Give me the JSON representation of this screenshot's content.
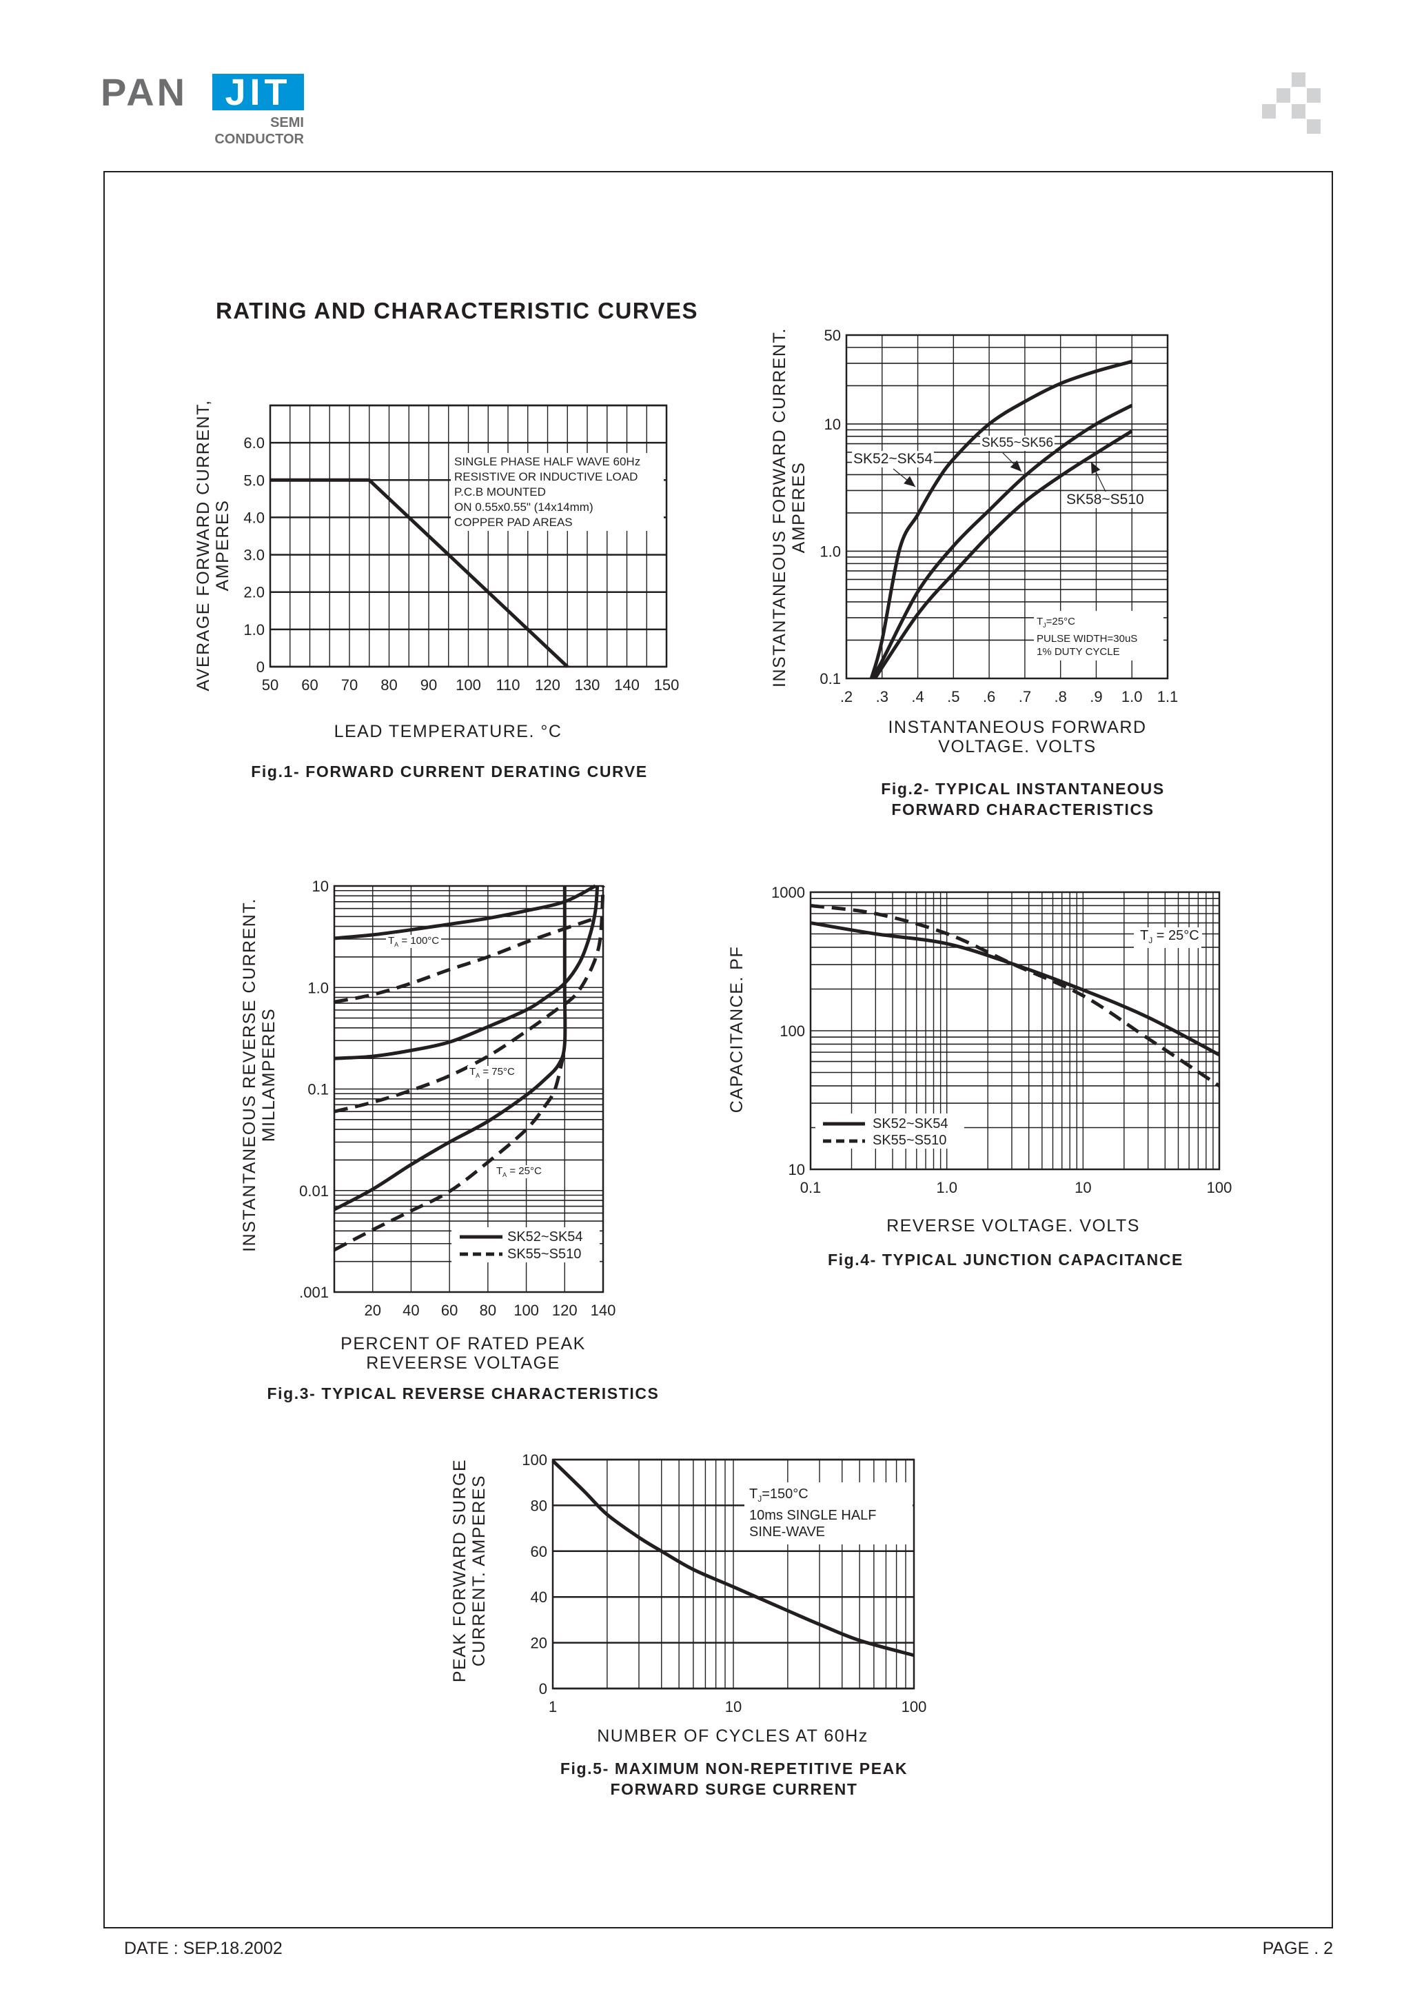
{
  "header": {
    "logo_left": "PAN",
    "logo_right": "JIT",
    "logo_sub1": "SEMI",
    "logo_sub2": "CONDUCTOR"
  },
  "section_title": "RATING AND CHARACTERISTIC CURVES",
  "footer": {
    "date": "DATE : SEP.18.2002",
    "page": "PAGE . 2"
  },
  "colors": {
    "ink": "#231f20",
    "logo_gray": "#6d6e70",
    "logo_blue": "#0095d9",
    "corner_squares": "#d1d2d4"
  },
  "chart_data": [
    {
      "type": "line",
      "caption": [
        "Fig.1- FORWARD CURRENT DERATING CURVE"
      ],
      "xlabel": [
        "LEAD TEMPERATURE. °C"
      ],
      "ylabel": [
        "AVERAGE FORWARD CURRENT,",
        "AMPERES"
      ],
      "xscale": "linear",
      "yscale": "linear",
      "xlim": [
        50,
        150
      ],
      "ylim": [
        0,
        7
      ],
      "grid": true,
      "xticks": [
        {
          "v": 50,
          "label": "50"
        },
        {
          "v": 60,
          "label": "60"
        },
        {
          "v": 70,
          "label": "70"
        },
        {
          "v": 80,
          "label": "80"
        },
        {
          "v": 90,
          "label": "90"
        },
        {
          "v": 100,
          "label": "100"
        },
        {
          "v": 110,
          "label": "110"
        },
        {
          "v": 120,
          "label": "120"
        },
        {
          "v": 130,
          "label": "130"
        },
        {
          "v": 140,
          "label": "140"
        },
        {
          "v": 150,
          "label": "150"
        }
      ],
      "yticks": [
        {
          "v": 0,
          "label": "0"
        },
        {
          "v": 1,
          "label": "1.0"
        },
        {
          "v": 2,
          "label": "2.0"
        },
        {
          "v": 3,
          "label": "3.0"
        },
        {
          "v": 4,
          "label": "4.0"
        },
        {
          "v": 5,
          "label": "5.0"
        },
        {
          "v": 6,
          "label": "6.0"
        }
      ],
      "annotation": [
        "SINGLE PHASE HALF WAVE 60Hz",
        "RESISTIVE OR INDUCTIVE LOAD",
        "P.C.B MOUNTED",
        "ON 0.55x0.55\" (14x14mm)",
        "COPPER PAD AREAS"
      ],
      "series": [
        {
          "style": "solid",
          "points": [
            [
              50,
              5
            ],
            [
              75,
              5
            ],
            [
              125,
              0
            ]
          ]
        }
      ]
    },
    {
      "type": "line",
      "caption": [
        "Fig.2- TYPICAL INSTANTANEOUS",
        "FORWARD CHARACTERISTICS"
      ],
      "xlabel": [
        "INSTANTANEOUS FORWARD",
        "VOLTAGE. VOLTS"
      ],
      "ylabel": [
        "INSTANTANEOUS FORWARD CURRENT.",
        "AMPERES"
      ],
      "xscale": "linear",
      "yscale": "log",
      "xlim": [
        0.2,
        1.1
      ],
      "ylim": [
        0.1,
        50
      ],
      "grid": true,
      "xticks": [
        {
          "v": 0.2,
          "label": ".2"
        },
        {
          "v": 0.3,
          "label": ".3"
        },
        {
          "v": 0.4,
          "label": ".4"
        },
        {
          "v": 0.5,
          "label": ".5"
        },
        {
          "v": 0.6,
          "label": ".6"
        },
        {
          "v": 0.7,
          "label": ".7"
        },
        {
          "v": 0.8,
          "label": ".8"
        },
        {
          "v": 0.9,
          "label": ".9"
        },
        {
          "v": 1.0,
          "label": "1.0"
        },
        {
          "v": 1.1,
          "label": "1.1"
        }
      ],
      "yticks": [
        {
          "v": 0.1,
          "label": "0.1"
        },
        {
          "v": 1,
          "label": "1.0"
        },
        {
          "v": 10,
          "label": "10"
        },
        {
          "v": 50,
          "label": "50"
        }
      ],
      "annotation": {
        "t": "T",
        "sub": "J",
        "rest": "=25°C",
        "lines": [
          "PULSE WIDTH=30uS",
          "1% DUTY CYCLE"
        ]
      },
      "series": [
        {
          "name": "SK52~SK54",
          "style": "solid",
          "points": [
            [
              0.27,
              0.1
            ],
            [
              0.3,
              0.2
            ],
            [
              0.35,
              1.06
            ],
            [
              0.4,
              1.94
            ],
            [
              0.45,
              3.4
            ],
            [
              0.5,
              5.3
            ],
            [
              0.6,
              10
            ],
            [
              0.7,
              15
            ],
            [
              0.8,
              20.8
            ],
            [
              0.9,
              26
            ],
            [
              1.0,
              31
            ]
          ]
        },
        {
          "name": "SK55~SK56",
          "style": "solid",
          "points": [
            [
              0.27,
              0.1
            ],
            [
              0.3,
              0.137
            ],
            [
              0.4,
              0.48
            ],
            [
              0.5,
              1.1
            ],
            [
              0.6,
              2.1
            ],
            [
              0.7,
              3.9
            ],
            [
              0.8,
              6.5
            ],
            [
              0.9,
              10
            ],
            [
              1.0,
              14
            ]
          ]
        },
        {
          "name": "SK58~S510",
          "style": "solid",
          "points": [
            [
              0.28,
              0.1
            ],
            [
              0.4,
              0.32
            ],
            [
              0.5,
              0.67
            ],
            [
              0.6,
              1.34
            ],
            [
              0.7,
              2.45
            ],
            [
              0.8,
              3.9
            ],
            [
              0.9,
              5.9
            ],
            [
              1.0,
              8.8
            ]
          ]
        }
      ]
    },
    {
      "type": "line",
      "caption": [
        "Fig.3- TYPICAL REVERSE CHARACTERISTICS"
      ],
      "xlabel": [
        "PERCENT OF RATED PEAK",
        "REVEERSE VOLTAGE"
      ],
      "ylabel": [
        "INSTANTANEOUS REVERSE CURRENT.",
        "MILLAMPERES"
      ],
      "xscale": "linear",
      "yscale": "log",
      "xlim": [
        0,
        140
      ],
      "ylim": [
        0.001,
        10
      ],
      "grid": true,
      "xticks": [
        {
          "v": 20,
          "label": "20"
        },
        {
          "v": 40,
          "label": "40"
        },
        {
          "v": 60,
          "label": "60"
        },
        {
          "v": 80,
          "label": "80"
        },
        {
          "v": 100,
          "label": "100"
        },
        {
          "v": 120,
          "label": "120"
        },
        {
          "v": 140,
          "label": "140"
        }
      ],
      "yticks": [
        {
          "v": 0.001,
          "label": ".001"
        },
        {
          "v": 0.01,
          "label": "0.01"
        },
        {
          "v": 0.1,
          "label": "0.1"
        },
        {
          "v": 1,
          "label": "1.0"
        },
        {
          "v": 10,
          "label": "10"
        }
      ],
      "temperature_labels": [
        {
          "t": "T",
          "sub": "A",
          "rest": " =  100°C"
        },
        {
          "t": "T",
          "sub": "A",
          "rest": " =  75°C"
        },
        {
          "t": "T",
          "sub": "A",
          "rest": " =  25°C"
        }
      ],
      "legend": [
        {
          "name": "SK52~SK54",
          "style": "solid"
        },
        {
          "name": "SK55~S510",
          "style": "dashed"
        }
      ],
      "legend_position": "bottom-right",
      "series": [
        {
          "name": "SK52~SK54",
          "temperature": "100°C",
          "style": "solid",
          "points": [
            [
              0,
              3.05
            ],
            [
              20,
              3.3
            ],
            [
              40,
              3.7
            ],
            [
              60,
              4.2
            ],
            [
              80,
              4.8
            ],
            [
              100,
              5.7
            ],
            [
              120,
              7.0
            ],
            [
              136,
              10
            ]
          ]
        },
        {
          "name": "SK55~S510",
          "temperature": "100°C",
          "style": "dashed",
          "points": [
            [
              0,
              0.72
            ],
            [
              20,
              0.85
            ],
            [
              40,
              1.1
            ],
            [
              60,
              1.5
            ],
            [
              80,
              2.0
            ],
            [
              100,
              2.8
            ],
            [
              120,
              3.8
            ],
            [
              136,
              4.8
            ]
          ]
        },
        {
          "name": "SK52~SK54",
          "temperature": "75°C",
          "style": "solid",
          "points": [
            [
              0,
              0.2
            ],
            [
              20,
              0.21
            ],
            [
              40,
              0.24
            ],
            [
              60,
              0.29
            ],
            [
              80,
              0.41
            ],
            [
              100,
              0.6
            ],
            [
              110,
              0.79
            ],
            [
              120,
              1.1
            ],
            [
              128,
              1.8
            ],
            [
              133,
              3.2
            ],
            [
              136,
              5.7
            ],
            [
              137,
              10
            ]
          ]
        },
        {
          "name": "SK55~S510",
          "temperature": "75°C",
          "style": "dashed",
          "points": [
            [
              0,
              0.06
            ],
            [
              20,
              0.074
            ],
            [
              40,
              0.097
            ],
            [
              60,
              0.135
            ],
            [
              80,
              0.21
            ],
            [
              100,
              0.37
            ],
            [
              115,
              0.59
            ],
            [
              125,
              0.82
            ],
            [
              132,
              1.3
            ],
            [
              137,
              2.2
            ],
            [
              139,
              3.8
            ],
            [
              140,
              10
            ]
          ]
        },
        {
          "name": "SK52~SK54",
          "temperature": "25°C",
          "style": "solid",
          "points": [
            [
              0,
              0.0065
            ],
            [
              20,
              0.0103
            ],
            [
              40,
              0.018
            ],
            [
              60,
              0.03
            ],
            [
              80,
              0.048
            ],
            [
              100,
              0.087
            ],
            [
              110,
              0.126
            ],
            [
              117,
              0.176
            ],
            [
              120,
              0.28
            ],
            [
              120,
              1
            ],
            [
              120,
              10
            ]
          ]
        },
        {
          "name": "SK55~S510",
          "temperature": "25°C",
          "style": "dashed",
          "points": [
            [
              0,
              0.0026
            ],
            [
              20,
              0.0041
            ],
            [
              40,
              0.0063
            ],
            [
              60,
              0.0098
            ],
            [
              80,
              0.019
            ],
            [
              100,
              0.04
            ],
            [
              110,
              0.069
            ],
            [
              115,
              0.1
            ],
            [
              119,
              0.2
            ]
          ]
        }
      ]
    },
    {
      "type": "line",
      "caption": [
        "Fig.4- TYPICAL JUNCTION CAPACITANCE"
      ],
      "xlabel": [
        "REVERSE VOLTAGE. VOLTS"
      ],
      "ylabel": [
        "CAPACITANCE. PF"
      ],
      "xscale": "log",
      "yscale": "log",
      "xlim": [
        0.1,
        100
      ],
      "ylim": [
        10,
        1000
      ],
      "grid": true,
      "xticks": [
        {
          "v": 0.1,
          "label": "0.1"
        },
        {
          "v": 1,
          "label": "1.0"
        },
        {
          "v": 10,
          "label": "10"
        },
        {
          "v": 100,
          "label": "100"
        }
      ],
      "yticks": [
        {
          "v": 10,
          "label": "10"
        },
        {
          "v": 100,
          "label": "100"
        },
        {
          "v": 1000,
          "label": "1000"
        }
      ],
      "annotation": {
        "t": "T",
        "sub": "J",
        "rest": " = 25°C"
      },
      "legend": [
        {
          "name": "SK52~SK54",
          "style": "solid"
        },
        {
          "name": "SK55~S510",
          "style": "dashed"
        }
      ],
      "legend_position": "bottom-left",
      "series": [
        {
          "name": "SK52~SK54",
          "style": "solid",
          "points": [
            [
              0.1,
              600
            ],
            [
              0.3,
              500
            ],
            [
              1,
              425
            ],
            [
              3,
              305
            ],
            [
              10,
              197
            ],
            [
              30,
              125
            ],
            [
              100,
              67
            ]
          ]
        },
        {
          "name": "SK55~S510",
          "style": "dashed",
          "points": [
            [
              0.1,
              800
            ],
            [
              0.3,
              700
            ],
            [
              1,
              502
            ],
            [
              3,
              305
            ],
            [
              10,
              179
            ],
            [
              30,
              88
            ],
            [
              100,
              40
            ]
          ]
        }
      ]
    },
    {
      "type": "line",
      "caption": [
        "Fig.5- MAXIMUM NON-REPETITIVE PEAK",
        "FORWARD SURGE CURRENT"
      ],
      "xlabel": [
        "NUMBER OF CYCLES AT 60Hz"
      ],
      "ylabel": [
        "PEAK FORWARD SURGE",
        "CURRENT. AMPERES"
      ],
      "xscale": "log",
      "yscale": "linear",
      "xlim": [
        1,
        100
      ],
      "ylim": [
        0,
        100
      ],
      "grid": true,
      "xticks": [
        {
          "v": 1,
          "label": "1"
        },
        {
          "v": 10,
          "label": "10"
        },
        {
          "v": 100,
          "label": "100"
        }
      ],
      "yticks": [
        {
          "v": 0,
          "label": "0"
        },
        {
          "v": 20,
          "label": "20"
        },
        {
          "v": 40,
          "label": "40"
        },
        {
          "v": 60,
          "label": "60"
        },
        {
          "v": 80,
          "label": "80"
        },
        {
          "v": 100,
          "label": "100"
        }
      ],
      "annotation": {
        "t": "T",
        "sub": "J",
        "rest": "=150°C",
        "lines": [
          "10ms SINGLE HALF",
          "SINE-WAVE"
        ]
      },
      "series": [
        {
          "style": "solid",
          "points": [
            [
              1,
              99.5
            ],
            [
              1.5,
              86
            ],
            [
              2,
              76
            ],
            [
              3,
              66
            ],
            [
              4,
              60
            ],
            [
              6,
              52
            ],
            [
              10,
              44.4
            ],
            [
              20,
              34
            ],
            [
              30,
              28
            ],
            [
              50,
              21
            ],
            [
              100,
              14.5
            ]
          ]
        }
      ]
    }
  ]
}
